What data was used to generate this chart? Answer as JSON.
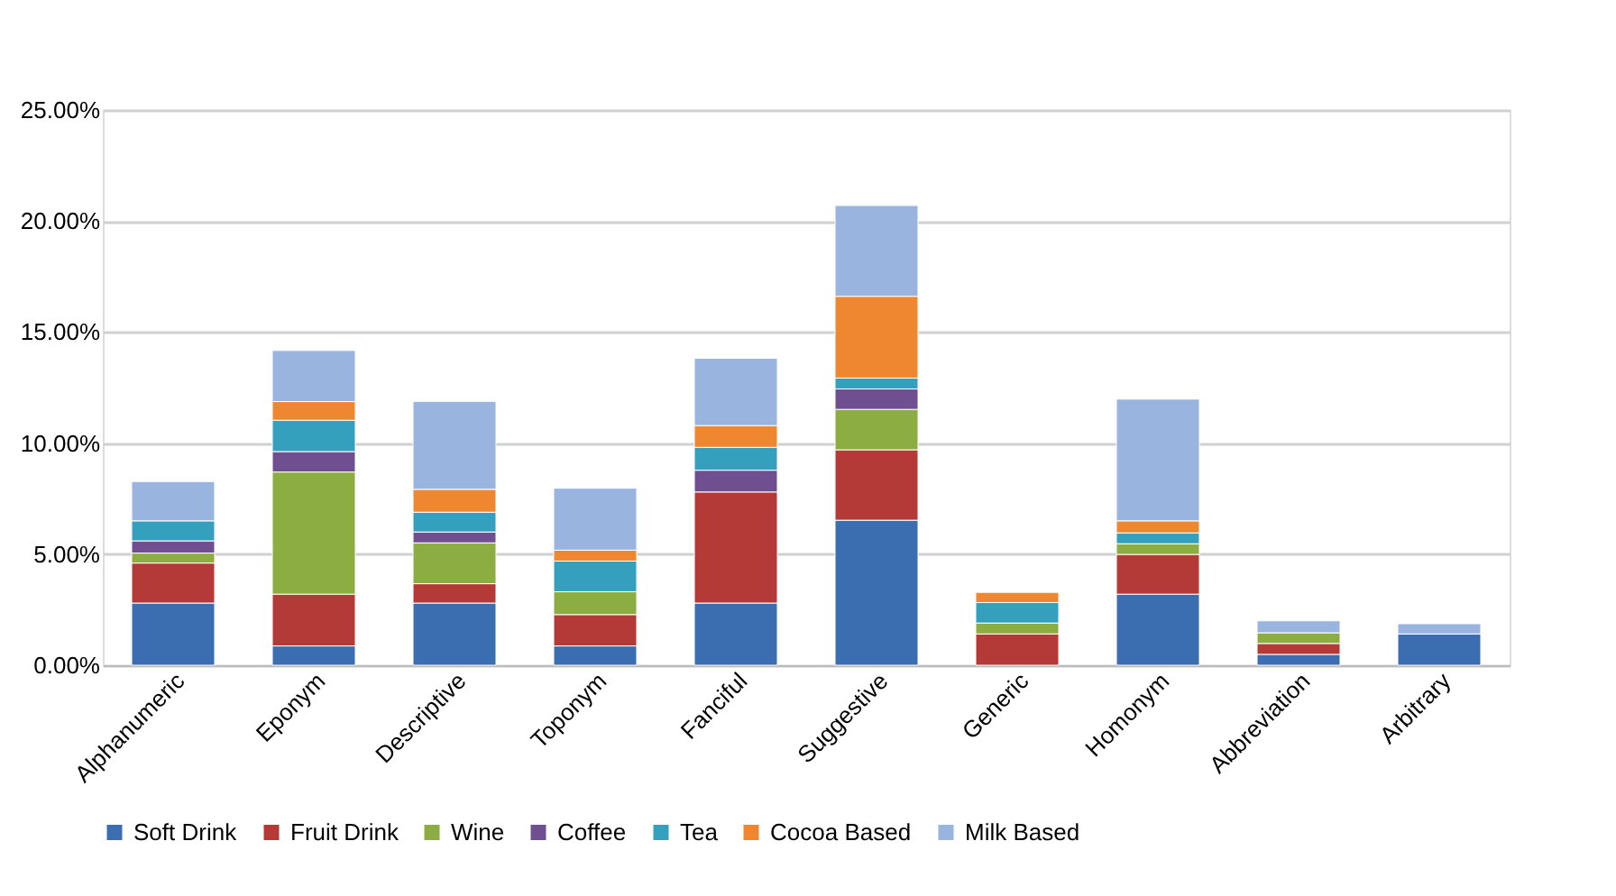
{
  "chart_data": {
    "type": "bar",
    "stacked": true,
    "categories": [
      "Alphanumeric",
      "Eponym",
      "Descriptive",
      "Toponym",
      "Fanciful",
      "Suggestive",
      "Generic",
      "Homonym",
      "Abbreviation",
      "Arbitrary"
    ],
    "series": [
      {
        "name": "Soft Drink",
        "color": "#3a6eb0",
        "values": [
          2.8,
          0.87,
          2.8,
          0.87,
          2.8,
          6.53,
          null,
          3.2,
          0.49,
          1.41
        ]
      },
      {
        "name": "Fruit Drink",
        "color": "#b33a37",
        "values": [
          1.8,
          2.33,
          0.87,
          1.41,
          5.0,
          3.17,
          1.41,
          1.79,
          0.49,
          null
        ]
      },
      {
        "name": "Wine",
        "color": "#8cad41",
        "values": [
          0.45,
          5.5,
          1.84,
          1.03,
          null,
          1.82,
          0.49,
          0.48,
          0.48,
          null
        ]
      },
      {
        "name": "Coffee",
        "color": "#704f90",
        "values": [
          0.55,
          0.92,
          0.49,
          null,
          0.98,
          0.92,
          null,
          null,
          null,
          null
        ]
      },
      {
        "name": "Tea",
        "color": "#34a0bd",
        "values": [
          0.9,
          1.41,
          0.89,
          1.38,
          1.03,
          0.49,
          0.92,
          0.49,
          null,
          null
        ]
      },
      {
        "name": "Cocoa Based",
        "color": "#ef8731",
        "values": [
          null,
          0.84,
          1.03,
          0.49,
          0.98,
          3.68,
          0.46,
          0.54,
          null,
          null
        ]
      },
      {
        "name": "Milk Based",
        "color": "#9ab4e0",
        "values": [
          1.77,
          2.3,
          3.96,
          2.79,
          3.03,
          4.09,
          null,
          5.48,
          0.54,
          0.46
        ]
      }
    ],
    "ylim": [
      0,
      25
    ],
    "yticks": [
      {
        "value": 0,
        "label": "0.00%"
      },
      {
        "value": 5,
        "label": "5.00%"
      },
      {
        "value": 10,
        "label": "10.00%"
      },
      {
        "value": 15,
        "label": "15.00%"
      },
      {
        "value": 20,
        "label": "20.00%"
      },
      {
        "value": 25,
        "label": "25.00%"
      }
    ],
    "grid": "y",
    "legend": "bottom"
  }
}
